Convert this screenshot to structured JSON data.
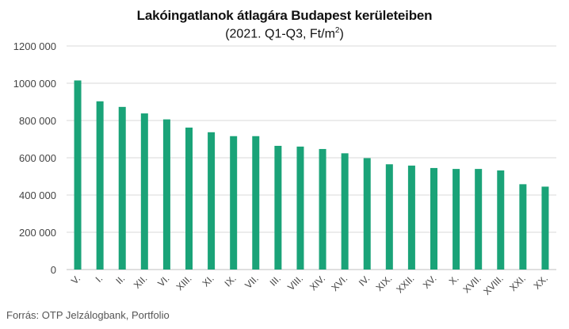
{
  "chart_data": {
    "type": "bar",
    "title": "Lakóingatlanok átlagára Budapest kerületeiben",
    "subtitle_main": "(2021. Q1-Q3, Ft/m",
    "subtitle_sup": "2",
    "subtitle_end": ")",
    "source": "Forrás: OTP Jelzálogbank, Portfolio",
    "categories": [
      "V.",
      "I.",
      "II.",
      "XII.",
      "VI.",
      "XIII.",
      "XI.",
      "IX.",
      "VII.",
      "III.",
      "VIII.",
      "XIV.",
      "XVI.",
      "IV.",
      "XIX.",
      "XXII.",
      "XV.",
      "X.",
      "XVII.",
      "XVIII.",
      "XXI.",
      "XX."
    ],
    "values": [
      1015000,
      903000,
      873000,
      838000,
      806000,
      762000,
      737000,
      716000,
      716000,
      664000,
      660000,
      647000,
      624000,
      598000,
      565000,
      558000,
      545000,
      540000,
      540000,
      532000,
      458000,
      445000
    ],
    "ylim": [
      0,
      1200000
    ],
    "yticks": [
      0,
      200000,
      400000,
      600000,
      800000,
      1000000,
      1200000
    ],
    "ytick_labels": [
      "0",
      "200 000",
      "400 000",
      "600 000",
      "800 000",
      "1000 000",
      "1200 000"
    ],
    "grid": true,
    "bar_color": "#1aa378",
    "grid_color": "#d9d9d9"
  }
}
